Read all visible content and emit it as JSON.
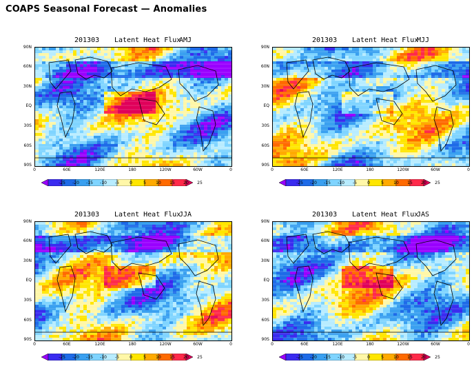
{
  "title": "COAPS Seasonal Forecast — Anomalies",
  "panels": [
    {
      "date": "201303",
      "variable": "Latent Heat Flux",
      "season": "AMJ"
    },
    {
      "date": "201303",
      "variable": "Latent Heat Flux",
      "season": "MJJ"
    },
    {
      "date": "201303",
      "variable": "Latent Heat Flux",
      "season": "JJA"
    },
    {
      "date": "201303",
      "variable": "Latent Heat Flux",
      "season": "JAS"
    }
  ],
  "lat_labels": [
    "90N",
    "60N",
    "30N",
    "EQ",
    "30S",
    "60S",
    "90S"
  ],
  "lon_labels": [
    "0",
    "60E",
    "120E",
    "180",
    "120W",
    "60W",
    "0"
  ],
  "colorbar": {
    "labels": [
      "-25",
      "-20",
      "-15",
      "-10",
      "-5",
      "0",
      "5",
      "10",
      "15",
      "20",
      "25"
    ],
    "colors": [
      "#9900ff",
      "#3a2bf0",
      "#1e6be8",
      "#3aa0f0",
      "#7fd4ff",
      "#b8ecff",
      "#fff7a8",
      "#ffe600",
      "#ffaa00",
      "#ff6a00",
      "#ff2a4a",
      "#e0005a"
    ]
  }
}
